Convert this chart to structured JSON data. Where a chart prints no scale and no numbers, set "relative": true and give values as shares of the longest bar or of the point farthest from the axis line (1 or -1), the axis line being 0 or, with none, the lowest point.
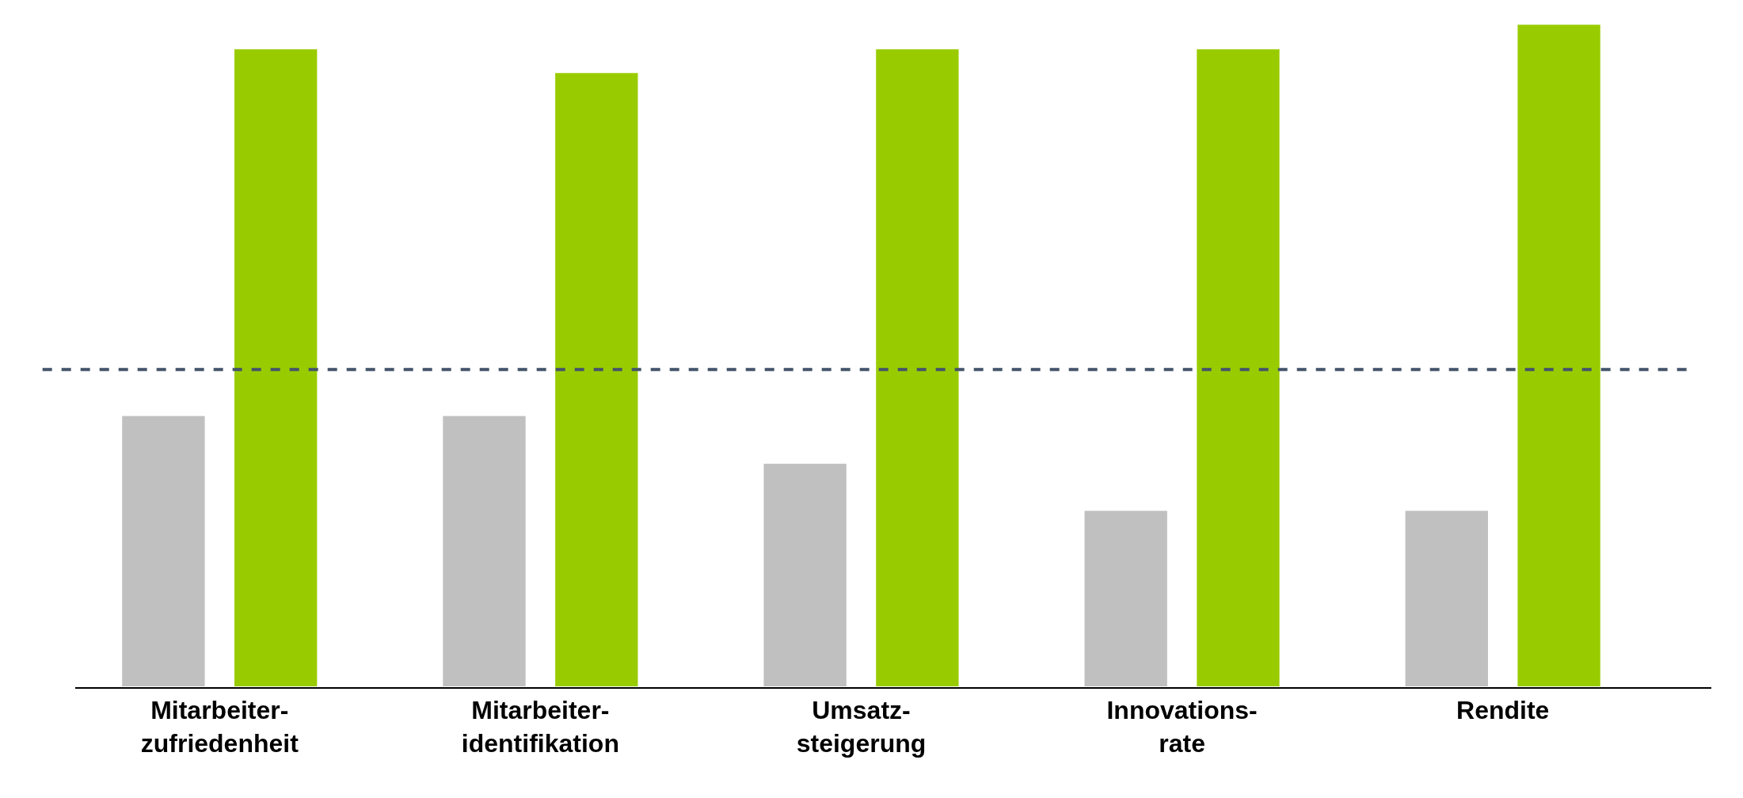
{
  "chart_data": {
    "type": "bar",
    "relative": true,
    "categories": [
      "Mitarbeiter-\nzufriedenheit",
      "Mitarbeiter-\nidentifikation",
      "Umsatz-\nsteigerung",
      "Innovations-\nrate",
      "Rendite"
    ],
    "series": [
      {
        "color": "#c0c0c0",
        "values": [
          0.41,
          0.41,
          0.338,
          0.267,
          0.267
        ]
      },
      {
        "color": "#99cc00",
        "values": [
          0.963,
          0.927,
          0.963,
          0.963,
          1
        ]
      }
    ],
    "ref_lines": [
      {
        "axis": "y",
        "value": 0.479,
        "color": "#44546a",
        "line_style": "dashed"
      }
    ],
    "grid": false
  }
}
